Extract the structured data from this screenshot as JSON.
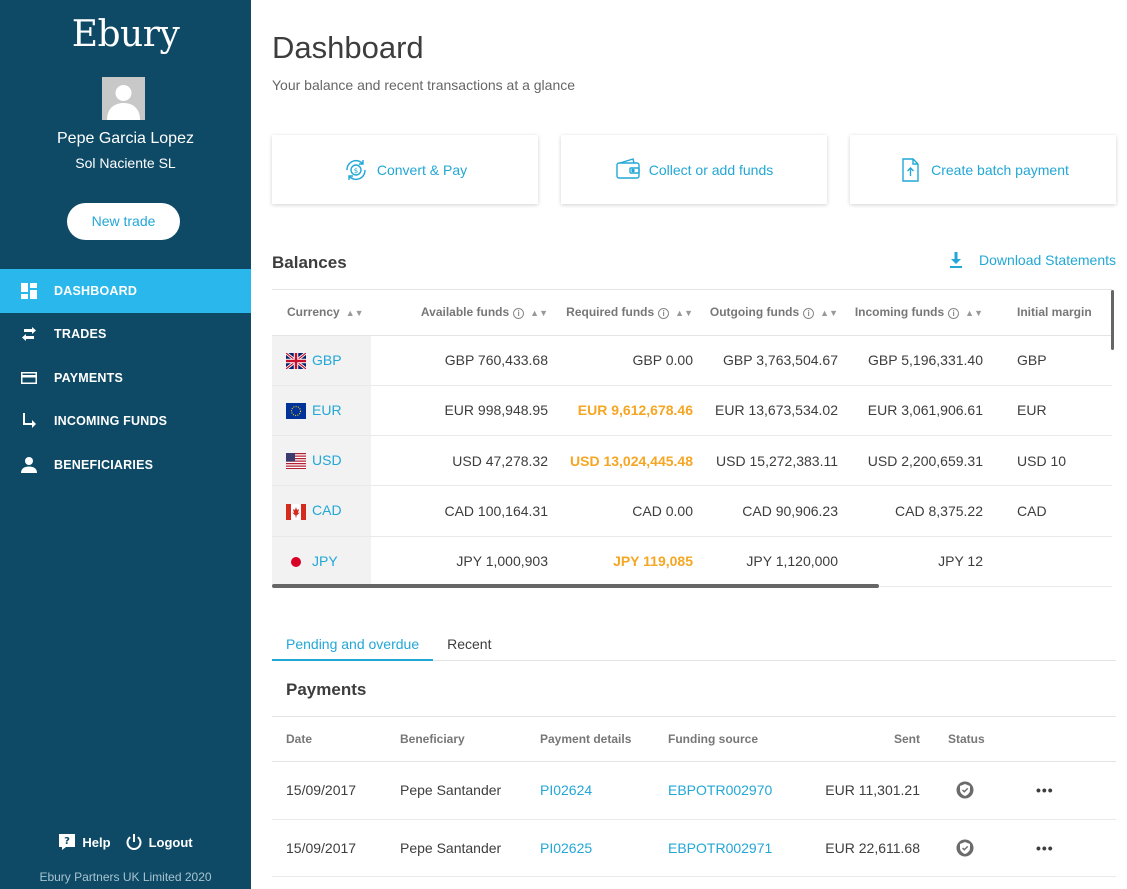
{
  "sidebar": {
    "logo": "Ebury",
    "user_name": "Pepe Garcia Lopez",
    "company": "Sol Naciente SL",
    "new_trade_label": "New trade",
    "nav": [
      {
        "label": "DASHBOARD",
        "icon": "dashboard-icon",
        "active": true
      },
      {
        "label": "TRADES",
        "icon": "swap-icon"
      },
      {
        "label": "PAYMENTS",
        "icon": "card-icon"
      },
      {
        "label": "INCOMING FUNDS",
        "icon": "arrow-down-right-icon"
      },
      {
        "label": "BENEFICIARIES",
        "icon": "person-icon"
      }
    ],
    "help_label": "Help",
    "logout_label": "Logout",
    "copyright": "Ebury Partners UK Limited 2020"
  },
  "header": {
    "title": "Dashboard",
    "subtitle": "Your balance and recent transactions at a glance"
  },
  "actions": [
    {
      "label": "Convert & Pay",
      "icon": "convert-icon"
    },
    {
      "label": "Collect or add funds",
      "icon": "wallet-icon"
    },
    {
      "label": "Create batch payment",
      "icon": "upload-file-icon"
    }
  ],
  "balances": {
    "title": "Balances",
    "download_label": "Download Statements",
    "columns": [
      "Currency",
      "Available funds",
      "Required funds",
      "Outgoing funds",
      "Incoming funds",
      "Initial margin"
    ],
    "rows": [
      {
        "currency": "GBP",
        "available": "GBP 760,433.68",
        "required": "GBP 0.00",
        "outgoing": "GBP 3,763,504.67",
        "incoming": "GBP 5,196,331.40",
        "margin": "GBP",
        "warn": false
      },
      {
        "currency": "EUR",
        "available": "EUR 998,948.95",
        "required": "EUR 9,612,678.46",
        "outgoing": "EUR 13,673,534.02",
        "incoming": "EUR 3,061,906.61",
        "margin": "EUR",
        "warn": true
      },
      {
        "currency": "USD",
        "available": "USD 47,278.32",
        "required": "USD 13,024,445.48",
        "outgoing": "USD 15,272,383.11",
        "incoming": "USD 2,200,659.31",
        "margin": "USD 10",
        "warn": true
      },
      {
        "currency": "CAD",
        "available": "CAD 100,164.31",
        "required": "CAD 0.00",
        "outgoing": "CAD 90,906.23",
        "incoming": "CAD 8,375.22",
        "margin": "CAD",
        "warn": false
      },
      {
        "currency": "JPY",
        "available": "JPY 1,000,903",
        "required": "JPY 119,085",
        "outgoing": "JPY 1,120,000",
        "incoming": "JPY 12",
        "margin": "",
        "warn": true
      }
    ]
  },
  "tabs": [
    {
      "label": "Pending and overdue",
      "active": true
    },
    {
      "label": "Recent",
      "active": false
    }
  ],
  "payments": {
    "title": "Payments",
    "columns": [
      "Date",
      "Beneficiary",
      "Payment details",
      "Funding source",
      "Sent",
      "Status"
    ],
    "rows": [
      {
        "date": "15/09/2017",
        "beneficiary": "Pepe Santander",
        "details": "PI02624",
        "funding": "EBPOTR002970",
        "sent": "EUR 11,301.21",
        "more": "•••"
      },
      {
        "date": "15/09/2017",
        "beneficiary": "Pepe Santander",
        "details": "PI02625",
        "funding": "EBPOTR002971",
        "sent": "EUR 22,611.68",
        "more": "•••"
      }
    ]
  }
}
